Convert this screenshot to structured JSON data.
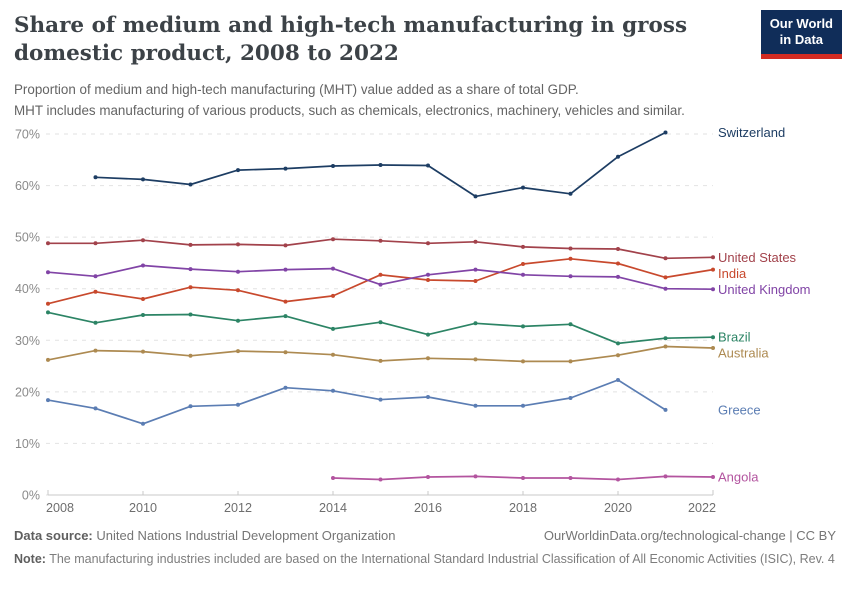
{
  "header": {
    "title": "Share of medium and high-tech manufacturing in gross domestic product, 2008 to 2022",
    "subtitle_line1": "Proportion of medium and high-tech manufacturing (MHT) value added as a share of total GDP.",
    "subtitle_line2": "MHT includes manufacturing of various products, such as chemicals, electronics, machinery, vehicles and similar.",
    "logo": {
      "line1": "Our World",
      "line2": "in Data",
      "bg_color": "#102d59",
      "bar_color": "#d42b21"
    }
  },
  "chart_data": {
    "type": "line",
    "title": "Share of medium and high-tech manufacturing in gross domestic product, 2008 to 2022",
    "xlabel": "",
    "ylabel": "",
    "xlim": [
      2008,
      2022
    ],
    "ylim": [
      0,
      70
    ],
    "x_ticks": [
      2008,
      2010,
      2012,
      2014,
      2016,
      2018,
      2020,
      2022
    ],
    "y_ticks": [
      0,
      10,
      20,
      30,
      40,
      50,
      60,
      70
    ],
    "y_tick_suffix": "%",
    "grid": "horizontal-dashed",
    "legend_position": "right-end-labels",
    "series": [
      {
        "name": "Switzerland",
        "color": "#1d3d63",
        "start_year": 2009,
        "values": [
          61.6,
          61.2,
          60.2,
          63.0,
          63.3,
          63.8,
          64.0,
          63.9,
          57.9,
          59.6,
          58.4,
          65.6,
          70.3
        ]
      },
      {
        "name": "United States",
        "color": "#a2424b",
        "start_year": 2008,
        "values": [
          48.8,
          48.8,
          49.4,
          48.5,
          48.6,
          48.4,
          49.6,
          49.3,
          48.8,
          49.1,
          48.1,
          47.8,
          47.7,
          45.9,
          46.1
        ]
      },
      {
        "name": "India",
        "color": "#c8492d",
        "start_year": 2008,
        "values": [
          37.1,
          39.4,
          38.0,
          40.3,
          39.7,
          37.5,
          38.6,
          42.7,
          41.7,
          41.5,
          44.8,
          45.8,
          44.9,
          42.2,
          43.7
        ]
      },
      {
        "name": "United Kingdom",
        "color": "#8144a6",
        "start_year": 2008,
        "values": [
          43.2,
          42.4,
          44.5,
          43.8,
          43.3,
          43.7,
          43.9,
          40.8,
          42.7,
          43.7,
          42.7,
          42.4,
          42.3,
          40.0,
          39.9
        ]
      },
      {
        "name": "Brazil",
        "color": "#2c8465",
        "start_year": 2008,
        "values": [
          35.4,
          33.4,
          34.9,
          35.0,
          33.8,
          34.7,
          32.2,
          33.5,
          31.1,
          33.3,
          32.7,
          33.1,
          29.4,
          30.4,
          30.6
        ]
      },
      {
        "name": "Australia",
        "color": "#ad8a51",
        "start_year": 2008,
        "values": [
          26.2,
          28.0,
          27.8,
          27.0,
          27.9,
          27.7,
          27.2,
          26.0,
          26.5,
          26.3,
          25.9,
          25.9,
          27.1,
          28.8,
          28.5
        ]
      },
      {
        "name": "Greece",
        "color": "#5b7db3",
        "start_year": 2008,
        "values": [
          18.4,
          16.8,
          13.8,
          17.2,
          17.5,
          20.8,
          20.2,
          18.5,
          19.0,
          17.3,
          17.3,
          18.8,
          22.3,
          16.5
        ]
      },
      {
        "name": "Angola",
        "color": "#b3549f",
        "start_year": 2014,
        "values": [
          3.3,
          3.0,
          3.5,
          3.6,
          3.3,
          3.3,
          3.0,
          3.6,
          3.5
        ]
      }
    ]
  },
  "footer": {
    "data_source_label": "Data source:",
    "data_source_value": " United Nations Industrial Development Organization",
    "link_text": "OurWorldinData.org/technological-change | CC BY",
    "note_label": "Note:",
    "note_value": " The manufacturing industries included are based on the International Standard Industrial Classification of All Economic Activities (ISIC), Rev. 4"
  }
}
